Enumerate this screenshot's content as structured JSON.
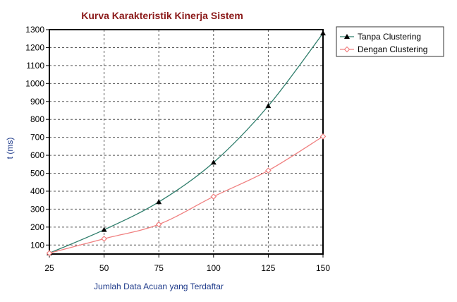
{
  "chart_data": {
    "type": "line",
    "title": "Kurva Karakteristik Kinerja Sistem",
    "xlabel": "Jumlah Data Acuan yang Terdaftar",
    "ylabel": "t (ms)",
    "x": [
      25,
      50,
      75,
      100,
      125,
      150
    ],
    "xlim": [
      25,
      150
    ],
    "ylim": [
      50,
      1300
    ],
    "xticks": [
      "25",
      "50",
      "75",
      "100",
      "125",
      "150"
    ],
    "yticks": [
      "100",
      "200",
      "300",
      "400",
      "500",
      "600",
      "700",
      "800",
      "900",
      "1000",
      "1100",
      "1200",
      "1300"
    ],
    "grid": true,
    "legend_position": "top-right outside",
    "series": [
      {
        "name": "Tanpa Clustering",
        "values": [
          55,
          185,
          340,
          560,
          875,
          1280
        ],
        "color": "#2e7d6b",
        "marker": "triangle"
      },
      {
        "name": "Dengan Clustering",
        "values": [
          55,
          135,
          215,
          370,
          515,
          705
        ],
        "color": "#f08080",
        "marker": "diamond"
      }
    ]
  }
}
